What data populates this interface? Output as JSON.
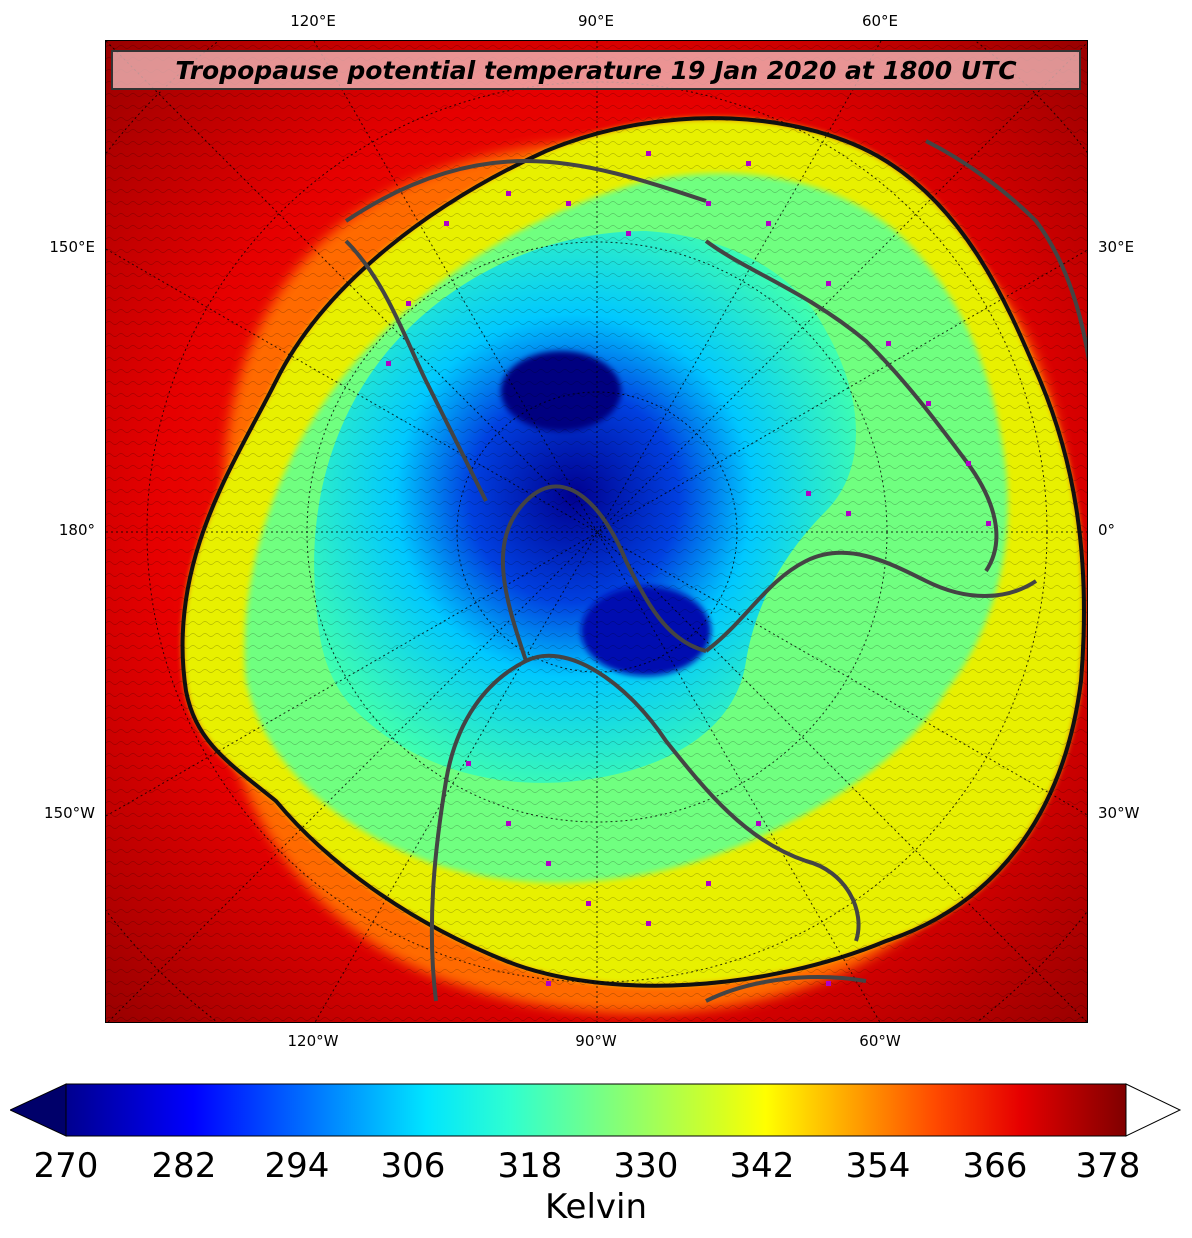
{
  "map": {
    "title": "Tropopause potential temperature 19 Jan 2020 at 1800 UTC",
    "projection": "north-polar-stereographic",
    "colormap": "jet",
    "colors": {
      "cold": "#00008b",
      "cool": "#0050ff",
      "cyan": "#00e5ff",
      "green": "#60ff90",
      "yellow": "#f5f500",
      "orange": "#ff8c00",
      "red": "#e60000",
      "darkred": "#8b0000",
      "coastline": "#444444",
      "stations": "#b000c8"
    }
  },
  "top_lon_labels": [
    "120°E",
    "90°E",
    "60°E"
  ],
  "bottom_lon_labels": [
    "120°W",
    "90°W",
    "60°W"
  ],
  "left_labels": [
    "150°E",
    "180°",
    "150°W"
  ],
  "right_labels": [
    "30°E",
    "0°",
    "30°W"
  ],
  "colorbar": {
    "min": 270,
    "max": 378,
    "extend": "both",
    "ticks": [
      "270",
      "282",
      "294",
      "306",
      "318",
      "330",
      "342",
      "354",
      "366",
      "378"
    ],
    "label": "Kelvin"
  }
}
